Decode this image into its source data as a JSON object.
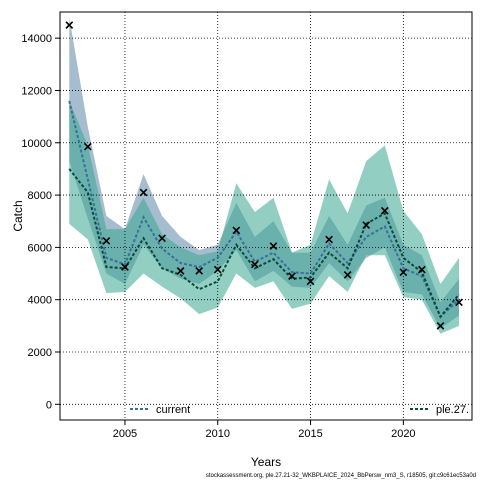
{
  "chart_data": {
    "type": "line",
    "title": "",
    "xlabel": "Years",
    "ylabel": "Catch",
    "xlim": [
      2001.5,
      2023.7
    ],
    "ylim": [
      -600,
      15000
    ],
    "x_ticks": [
      2005,
      2010,
      2015,
      2020
    ],
    "y_ticks": [
      0,
      2000,
      4000,
      6000,
      8000,
      10000,
      12000,
      14000
    ],
    "grid": true,
    "legend_placement": "bottom",
    "years": [
      2002,
      2003,
      2004,
      2005,
      2006,
      2007,
      2008,
      2009,
      2010,
      2011,
      2012,
      2013,
      2014,
      2015,
      2016,
      2017,
      2018,
      2019,
      2020,
      2021,
      2022,
      2023
    ],
    "observed": {
      "values": [
        14500,
        9850,
        6250,
        5250,
        8100,
        6350,
        5100,
        5100,
        5150,
        6650,
        5350,
        6050,
        4900,
        4700,
        6300,
        4950,
        6850,
        7400,
        5050,
        5150,
        3000,
        3900
      ]
    },
    "series": [
      {
        "name": "current",
        "color": "#3a6f9a",
        "band_color": "#5b86a8",
        "median": [
          11600,
          8600,
          5600,
          5350,
          7150,
          5950,
          5400,
          5250,
          5600,
          6600,
          5450,
          5800,
          5050,
          5000,
          6150,
          5400,
          6400,
          6800,
          5200,
          4900,
          3350,
          4000
        ],
        "lower": [
          9300,
          7100,
          5000,
          4600,
          6100,
          5200,
          4800,
          4600,
          5100,
          5900,
          4700,
          5100,
          4500,
          4450,
          5400,
          4700,
          5600,
          6000,
          4300,
          4200,
          2900,
          3400
        ],
        "upper": [
          14800,
          10600,
          7200,
          6700,
          8800,
          7200,
          6400,
          5900,
          6100,
          7700,
          6400,
          7000,
          5800,
          5800,
          7200,
          6100,
          7600,
          7900,
          6100,
          5700,
          3900,
          4800
        ]
      },
      {
        "name": "ple.27.",
        "color": "#0a4a3a",
        "band_color": "#3aa690",
        "median": [
          9000,
          8100,
          5250,
          5200,
          6350,
          5200,
          4950,
          4400,
          4700,
          6100,
          5200,
          5550,
          4800,
          4850,
          5800,
          5200,
          6900,
          7300,
          5600,
          5050,
          3350,
          4200
        ],
        "lower": [
          6900,
          6300,
          4250,
          4300,
          5000,
          4500,
          4050,
          3450,
          3700,
          5000,
          4450,
          4700,
          3650,
          3850,
          4900,
          4300,
          5700,
          5700,
          4100,
          4000,
          2700,
          3000
        ],
        "upper": [
          11600,
          9900,
          6700,
          6700,
          7900,
          6500,
          6000,
          5700,
          5850,
          8450,
          7350,
          7900,
          5800,
          6100,
          8600,
          7300,
          9300,
          9900,
          7400,
          6500,
          4600,
          5600
        ]
      }
    ],
    "footer": "stockassessment.org, ple.27.21-32_WKBPLAICE_2024_BbPersw_nm3_S, r18505, git:c9c61ec53a0d"
  }
}
